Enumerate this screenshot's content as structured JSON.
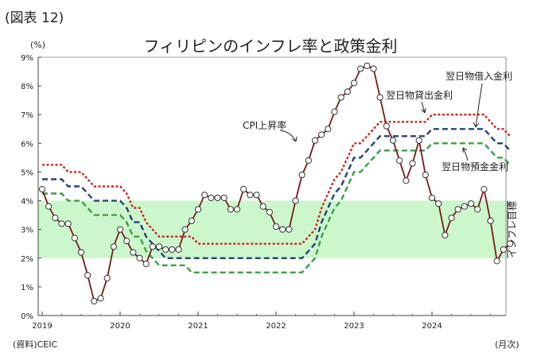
{
  "figure_label": "(図表 12)",
  "source": "(資料)CEIC",
  "chart_data": {
    "type": "line",
    "title": "フィリピンのインフレ率と政策金利",
    "ylabel": "(%)",
    "xlabel": "(月次)",
    "ylim": [
      0,
      9
    ],
    "yticks": [
      "0%",
      "1%",
      "2%",
      "3%",
      "4%",
      "5%",
      "6%",
      "7%",
      "8%",
      "9%"
    ],
    "xticks": [
      "2019",
      "2020",
      "2021",
      "2022",
      "2023",
      "2024"
    ],
    "x_start": "2019-01",
    "target_band": {
      "label": "インフレ目標",
      "low": 2,
      "high": 4,
      "color": "#ccf7cc"
    },
    "series": [
      {
        "name": "CPI上昇率",
        "color": "#7a1a1a",
        "style": "line-markers",
        "values": [
          4.4,
          3.8,
          3.4,
          3.2,
          3.2,
          2.7,
          2.2,
          1.4,
          0.5,
          0.6,
          1.3,
          2.4,
          3.0,
          2.6,
          2.2,
          2.0,
          1.8,
          2.4,
          2.4,
          2.3,
          2.3,
          2.3,
          3.0,
          3.3,
          3.7,
          4.2,
          4.1,
          4.1,
          4.1,
          3.7,
          3.7,
          4.4,
          4.2,
          4.2,
          3.8,
          3.6,
          3.1,
          3.0,
          3.0,
          4.0,
          4.9,
          5.4,
          6.1,
          6.3,
          6.5,
          7.1,
          7.6,
          7.8,
          8.1,
          8.6,
          8.7,
          8.6,
          7.6,
          6.6,
          6.1,
          5.4,
          4.7,
          5.3,
          6.1,
          4.9,
          4.1,
          3.9,
          2.8,
          3.4,
          3.7,
          3.8,
          3.9,
          3.7,
          4.4,
          3.3,
          1.9,
          2.3,
          2.5
        ]
      },
      {
        "name": "翌日物借入金利",
        "color": "#c8281e",
        "style": "dotted",
        "values": [
          5.25,
          5.25,
          5.25,
          5.25,
          5.0,
          5.0,
          5.0,
          4.75,
          4.5,
          4.5,
          4.5,
          4.5,
          4.5,
          4.25,
          3.75,
          3.75,
          3.25,
          3.0,
          2.75,
          2.75,
          2.75,
          2.75,
          2.75,
          2.75,
          2.5,
          2.5,
          2.5,
          2.5,
          2.5,
          2.5,
          2.5,
          2.5,
          2.5,
          2.5,
          2.5,
          2.5,
          2.5,
          2.5,
          2.5,
          2.5,
          2.5,
          2.75,
          3.0,
          3.75,
          4.25,
          4.75,
          5.0,
          5.5,
          6.0,
          6.0,
          6.25,
          6.5,
          6.75,
          6.75,
          6.75,
          6.75,
          6.75,
          6.75,
          6.75,
          6.75,
          7.0,
          7.0,
          7.0,
          7.0,
          7.0,
          7.0,
          7.0,
          7.0,
          7.0,
          6.75,
          6.5,
          6.5,
          6.25
        ]
      },
      {
        "name": "翌日物貸出金利",
        "color": "#24427a",
        "style": "dashed",
        "values": [
          4.75,
          4.75,
          4.75,
          4.75,
          4.5,
          4.5,
          4.5,
          4.25,
          4.0,
          4.0,
          4.0,
          4.0,
          4.0,
          3.75,
          3.25,
          3.25,
          2.75,
          2.5,
          2.25,
          2.0,
          2.0,
          2.0,
          2.0,
          2.0,
          2.0,
          2.0,
          2.0,
          2.0,
          2.0,
          2.0,
          2.0,
          2.0,
          2.0,
          2.0,
          2.0,
          2.0,
          2.0,
          2.0,
          2.0,
          2.0,
          2.0,
          2.25,
          2.5,
          3.25,
          3.75,
          4.25,
          4.5,
          5.0,
          5.5,
          5.5,
          5.75,
          6.0,
          6.25,
          6.25,
          6.25,
          6.25,
          6.25,
          6.25,
          6.25,
          6.25,
          6.5,
          6.5,
          6.5,
          6.5,
          6.5,
          6.5,
          6.5,
          6.5,
          6.5,
          6.25,
          6.0,
          6.0,
          5.75
        ]
      },
      {
        "name": "翌日物預金金利",
        "color": "#3aa04a",
        "style": "dashed",
        "values": [
          4.25,
          4.25,
          4.25,
          4.25,
          4.0,
          4.0,
          4.0,
          3.75,
          3.5,
          3.5,
          3.5,
          3.5,
          3.5,
          3.25,
          2.75,
          2.75,
          2.25,
          2.0,
          1.75,
          1.75,
          1.75,
          1.75,
          1.75,
          1.5,
          1.5,
          1.5,
          1.5,
          1.5,
          1.5,
          1.5,
          1.5,
          1.5,
          1.5,
          1.5,
          1.5,
          1.5,
          1.5,
          1.5,
          1.5,
          1.5,
          1.5,
          1.75,
          2.0,
          2.75,
          3.25,
          3.75,
          4.0,
          4.5,
          5.0,
          5.0,
          5.25,
          5.5,
          5.75,
          5.75,
          5.75,
          5.75,
          5.75,
          5.75,
          5.75,
          5.75,
          6.0,
          6.0,
          6.0,
          6.0,
          6.0,
          6.0,
          6.0,
          6.0,
          6.0,
          5.75,
          5.5,
          5.5,
          5.25
        ]
      }
    ]
  }
}
